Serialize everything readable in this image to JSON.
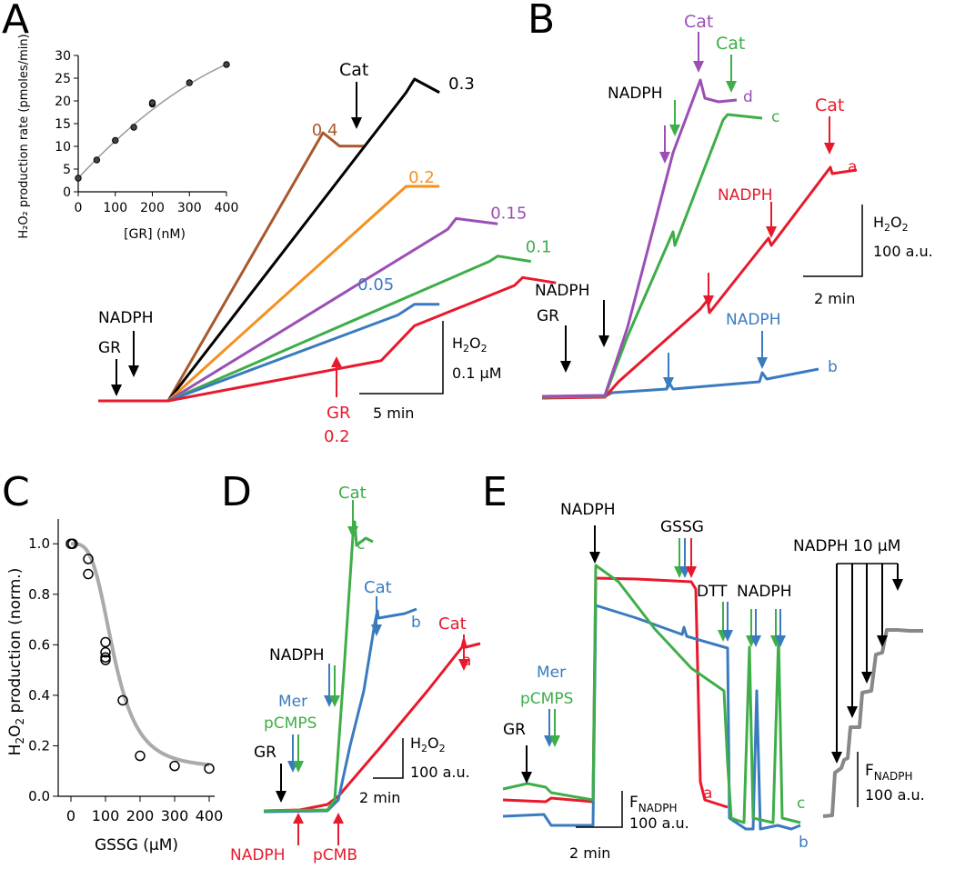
{
  "colors": {
    "red": "#e8192c",
    "blue": "#3a7bbf",
    "green": "#3eae48",
    "purple": "#9b4fb5",
    "orange": "#f5901e",
    "brown": "#a8582e",
    "black": "#000000",
    "gray": "#888888"
  },
  "panels": {
    "A": "A",
    "B": "B",
    "C": "C",
    "D": "D",
    "E": "E"
  },
  "chart_data": [
    {
      "panel": "A-inset",
      "type": "scatter",
      "ylabel": "H₂O₂ production rate (pmoles/min)",
      "xlabel": "[GR] (nM)",
      "xticks": [
        "0",
        "100",
        "200",
        "300",
        "400"
      ],
      "yticks": [
        "0",
        "5",
        "10",
        "15",
        "20",
        "25",
        "30"
      ],
      "xlim": [
        0,
        400
      ],
      "ylim": [
        0,
        30
      ],
      "x": [
        0,
        50,
        100,
        150,
        200,
        200,
        300,
        400
      ],
      "y": [
        3,
        7,
        11.3,
        14.2,
        19.3,
        19.6,
        24,
        28
      ],
      "fit": "smooth curve"
    },
    {
      "panel": "A",
      "type": "line",
      "series": [
        {
          "name": "0.4",
          "color": "brown",
          "pts": [
            [
              0,
              0
            ],
            [
              4.2,
              0
            ],
            [
              13.5,
              10
            ],
            [
              14.5,
              9.5
            ],
            [
              16,
              9.5
            ]
          ]
        },
        {
          "name": "0.3",
          "color": "black",
          "pts": [
            [
              0,
              0
            ],
            [
              4.2,
              0
            ],
            [
              18.5,
              11.5
            ],
            [
              19,
              12
            ],
            [
              20.5,
              11.5
            ]
          ]
        },
        {
          "name": "0.2",
          "color": "orange",
          "pts": [
            [
              0,
              0
            ],
            [
              4.2,
              0
            ],
            [
              18.5,
              8
            ],
            [
              19,
              8
            ],
            [
              20.5,
              8
            ]
          ]
        },
        {
          "name": "0.15",
          "color": "purple",
          "pts": [
            [
              0,
              0
            ],
            [
              4.2,
              0
            ],
            [
              21,
              6.4
            ],
            [
              21.5,
              6.8
            ],
            [
              24,
              6.6
            ]
          ]
        },
        {
          "name": "0.1",
          "color": "green",
          "pts": [
            [
              0,
              0
            ],
            [
              4.2,
              0
            ],
            [
              23.5,
              5.2
            ],
            [
              24,
              5.4
            ],
            [
              26,
              5.2
            ]
          ]
        },
        {
          "name": "0.05",
          "color": "blue",
          "pts": [
            [
              0,
              0
            ],
            [
              4.2,
              0
            ],
            [
              18,
              3.2
            ],
            [
              19,
              3.6
            ],
            [
              20.5,
              3.6
            ]
          ]
        },
        {
          "name": "",
          "color": "red",
          "pts": [
            [
              0,
              0
            ],
            [
              4.2,
              0
            ],
            [
              17,
              1.5
            ],
            [
              19,
              2.8
            ],
            [
              25,
              4.3
            ],
            [
              25.5,
              4.6
            ],
            [
              27.5,
              4.4
            ]
          ]
        }
      ],
      "annotations": [
        "NADPH",
        "GR",
        "Cat",
        "GR",
        "0.2"
      ],
      "scalebar": {
        "x": "5 min",
        "y1": "H₂O₂",
        "y2": "0.1 μM"
      }
    },
    {
      "panel": "B",
      "type": "line",
      "series": [
        {
          "name": "d",
          "color": "purple"
        },
        {
          "name": "c",
          "color": "green"
        },
        {
          "name": "a",
          "color": "red"
        },
        {
          "name": "b",
          "color": "blue"
        }
      ],
      "annotations": [
        "Cat",
        "Cat",
        "NADPH",
        "Cat",
        "NADPH",
        "NADPH",
        "GR",
        "NADPH"
      ],
      "scalebar": {
        "x": "2 min",
        "y1": "H₂O₂",
        "y2": "100 a.u."
      }
    },
    {
      "panel": "C",
      "type": "scatter",
      "ylabel": "H₂O₂ production (norm.)",
      "xlabel": "GSSG (μM)",
      "xticks": [
        "0",
        "100",
        "200",
        "300",
        "400"
      ],
      "yticks": [
        "0.0",
        "0.2",
        "0.4",
        "0.6",
        "0.8",
        "1.0"
      ],
      "xlim": [
        -10,
        420
      ],
      "ylim": [
        0,
        1.08
      ],
      "x": [
        0,
        5,
        50,
        50,
        100,
        100,
        100,
        100,
        150,
        200,
        300,
        400
      ],
      "y": [
        1.0,
        1.0,
        0.94,
        0.88,
        0.61,
        0.57,
        0.55,
        0.54,
        0.38,
        0.16,
        0.12,
        0.11
      ],
      "fit": "sigmoid"
    },
    {
      "panel": "D",
      "type": "line",
      "series": [
        {
          "name": "c",
          "color": "green"
        },
        {
          "name": "b",
          "color": "blue"
        },
        {
          "name": "a",
          "color": "red"
        }
      ],
      "annotations": [
        "Cat",
        "Cat",
        "Cat",
        "NADPH",
        "Mer",
        "pCMPS",
        "GR",
        "NADPH",
        "pCMB"
      ],
      "scalebar": {
        "x": "2 min",
        "y1": "H₂O₂",
        "y2": "100 a.u."
      }
    },
    {
      "panel": "E",
      "type": "line",
      "series": [
        {
          "name": "a",
          "color": "red"
        },
        {
          "name": "b",
          "color": "blue"
        },
        {
          "name": "c",
          "color": "green"
        },
        {
          "name": "",
          "color": "gray"
        }
      ],
      "annotations": [
        "NADPH",
        "GSSG",
        "DTT",
        "NADPH",
        "Mer",
        "pCMPS",
        "GR",
        "NADPH 10 μM"
      ],
      "scalebar": {
        "x": "2 min",
        "y1": "F",
        "y1sub": "NADPH",
        "y2": "100 a.u."
      },
      "scalebar2": {
        "y1": "F",
        "y1sub": "NADPH",
        "y2": "100 a.u."
      }
    }
  ]
}
